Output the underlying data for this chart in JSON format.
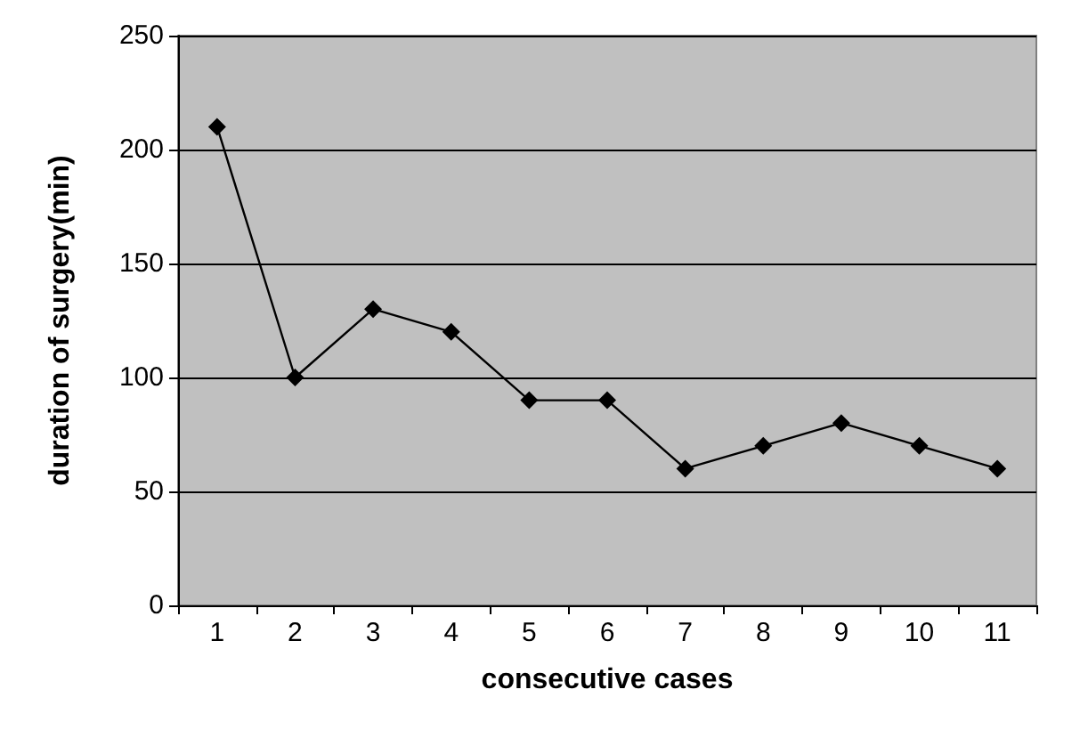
{
  "chart_data": {
    "type": "line",
    "xlabel": "consecutive cases",
    "ylabel": "duration of surgery(min)",
    "categories": [
      "1",
      "2",
      "3",
      "4",
      "5",
      "6",
      "7",
      "8",
      "9",
      "10",
      "11"
    ],
    "series": [
      {
        "color": "#000000",
        "values": [
          210,
          100,
          130,
          120,
          90,
          90,
          60,
          70,
          80,
          70,
          60
        ]
      }
    ],
    "ylim": [
      0,
      250
    ],
    "yticks": [
      0,
      50,
      100,
      150,
      200,
      250
    ],
    "grid": "y",
    "marker": "diamond",
    "line_style": "solid"
  }
}
